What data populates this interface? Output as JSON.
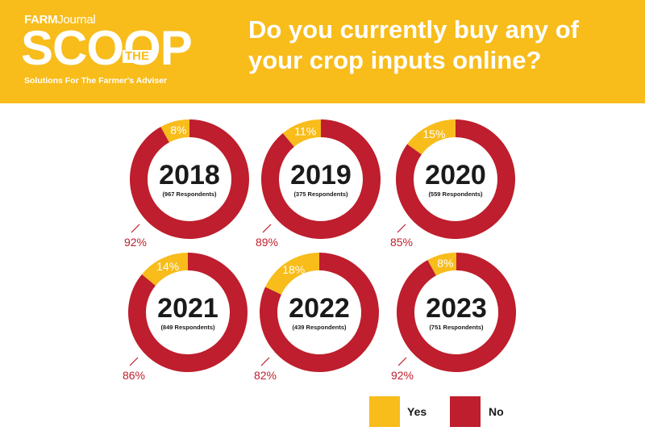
{
  "header": {
    "brand_top_bold": "FARM",
    "brand_top_light": "Journal",
    "brand_main": "SCOOP",
    "brand_the": "THE",
    "brand_tagline": "Solutions For The Farmer's Adviser",
    "question": "Do you currently buy any of your crop inputs online?"
  },
  "colors": {
    "header_bg": "#f8bc1b",
    "yes": "#f8bc1b",
    "no": "#be1e2d"
  },
  "chart_data": {
    "type": "pie",
    "variant": "donut",
    "title": "Do you currently buy any of your crop inputs online?",
    "categories": [
      "Yes",
      "No"
    ],
    "legend_position": "bottom-right",
    "series": [
      {
        "year": "2018",
        "respondents": "(967 Respondents)",
        "yes": 8,
        "no": 92,
        "yes_label": "8%",
        "no_label": "92%"
      },
      {
        "year": "2019",
        "respondents": "(375 Respondents)",
        "yes": 11,
        "no": 89,
        "yes_label": "11%",
        "no_label": "89%"
      },
      {
        "year": "2020",
        "respondents": "(559 Respondents)",
        "yes": 15,
        "no": 85,
        "yes_label": "15%",
        "no_label": "85%"
      },
      {
        "year": "2021",
        "respondents": "(849 Respondents)",
        "yes": 14,
        "no": 86,
        "yes_label": "14%",
        "no_label": "86%"
      },
      {
        "year": "2022",
        "respondents": "(439 Respondents)",
        "yes": 18,
        "no": 82,
        "yes_label": "18%",
        "no_label": "82%"
      },
      {
        "year": "2023",
        "respondents": "(751 Respondents)",
        "yes": 8,
        "no": 92,
        "yes_label": "8%",
        "no_label": "92%"
      }
    ]
  },
  "legend": {
    "yes_label": "Yes",
    "no_label": "No"
  }
}
